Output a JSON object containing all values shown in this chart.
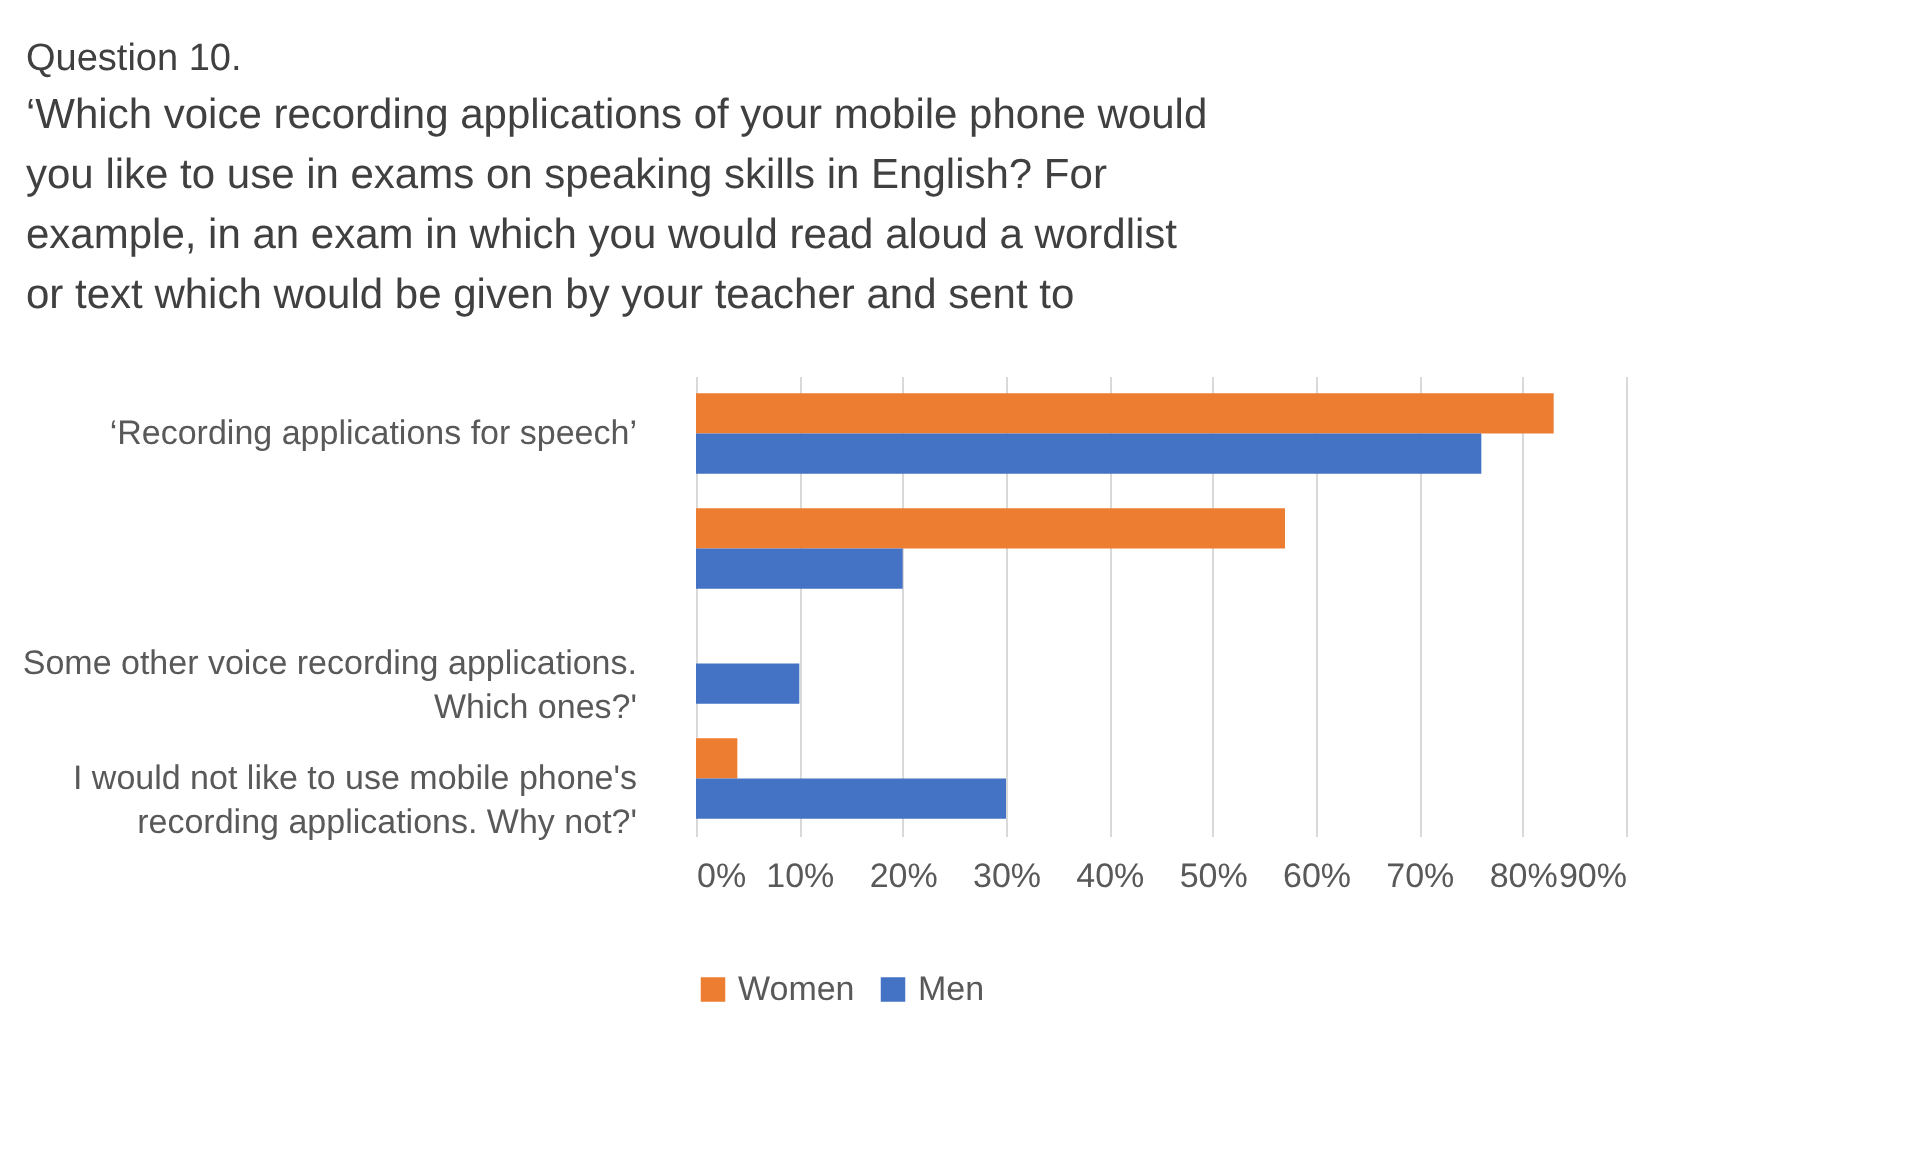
{
  "chart_data": {
    "type": "bar",
    "orientation": "horizontal",
    "title": "Question 10.",
    "subtitle": "‘Which voice recording applications of your mobile phone would you like to use in exams on speaking skills in English? For example, in an exam in which you would read aloud a wordlist or text which would be given by your teacher and sent to",
    "categories": [
      "‘Recording applications for speech’",
      null,
      "Some other voice recording applications. Which ones?'",
      "I would not like to use mobile phone's recording applications. Why not?'"
    ],
    "series": [
      {
        "name": "Women",
        "color": "#ed7d31",
        "values": [
          83,
          57,
          0,
          4
        ]
      },
      {
        "name": "Men",
        "color": "#4472c4",
        "values": [
          76,
          20,
          10,
          30
        ]
      }
    ],
    "xlim": [
      0,
      90
    ],
    "xticks": [
      {
        "value": 0,
        "label": "0%"
      },
      {
        "value": 10,
        "label": "10%"
      },
      {
        "value": 20,
        "label": "20%"
      },
      {
        "value": 30,
        "label": "30%"
      },
      {
        "value": 40,
        "label": "40%"
      },
      {
        "value": 50,
        "label": "50%"
      },
      {
        "value": 60,
        "label": "60%"
      },
      {
        "value": 70,
        "label": "70%"
      },
      {
        "value": 80,
        "label": "80%"
      },
      {
        "value": 90,
        "label": "90%"
      }
    ],
    "grid": true,
    "legend": "bottom"
  }
}
